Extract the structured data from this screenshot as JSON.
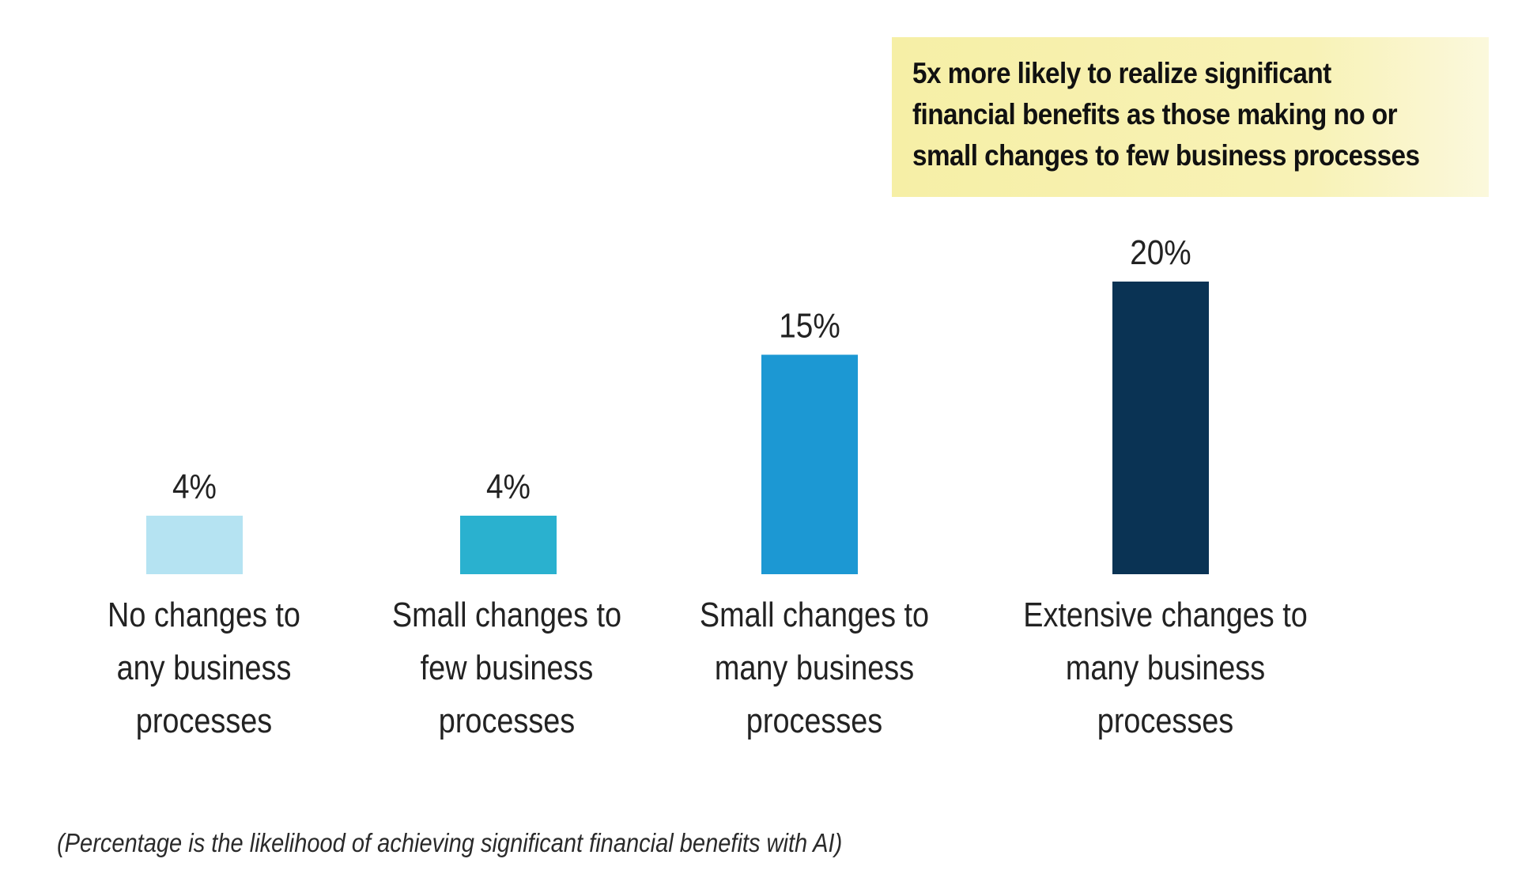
{
  "callout": {
    "text": "5x more likely to realize significant\nfinancial benefits as those making no or\nsmall changes to few business processes"
  },
  "footnote": "(Percentage is the likelihood of achieving significant financial benefits with AI)",
  "colors": {
    "bar1": "#b5e3f2",
    "bar2": "#2ab1cf",
    "bar3": "#1c98d3",
    "bar4": "#0a3354",
    "callout_bg": "#f6efa6",
    "text": "#222222"
  },
  "chart_data": {
    "type": "bar",
    "title": "",
    "xlabel": "",
    "ylabel": "",
    "categories": [
      [
        "No changes to",
        "any business",
        "processes"
      ],
      [
        "Small changes to",
        "few business",
        "processes"
      ],
      [
        "Small changes to",
        "many business",
        "processes"
      ],
      [
        "Extensive changes to",
        "many business",
        "processes"
      ]
    ],
    "values": [
      4,
      4,
      15,
      20
    ],
    "value_labels": [
      "4%",
      "4%",
      "15%",
      "20%"
    ],
    "ylim": [
      0,
      20
    ],
    "grid": false,
    "legend": "none"
  }
}
